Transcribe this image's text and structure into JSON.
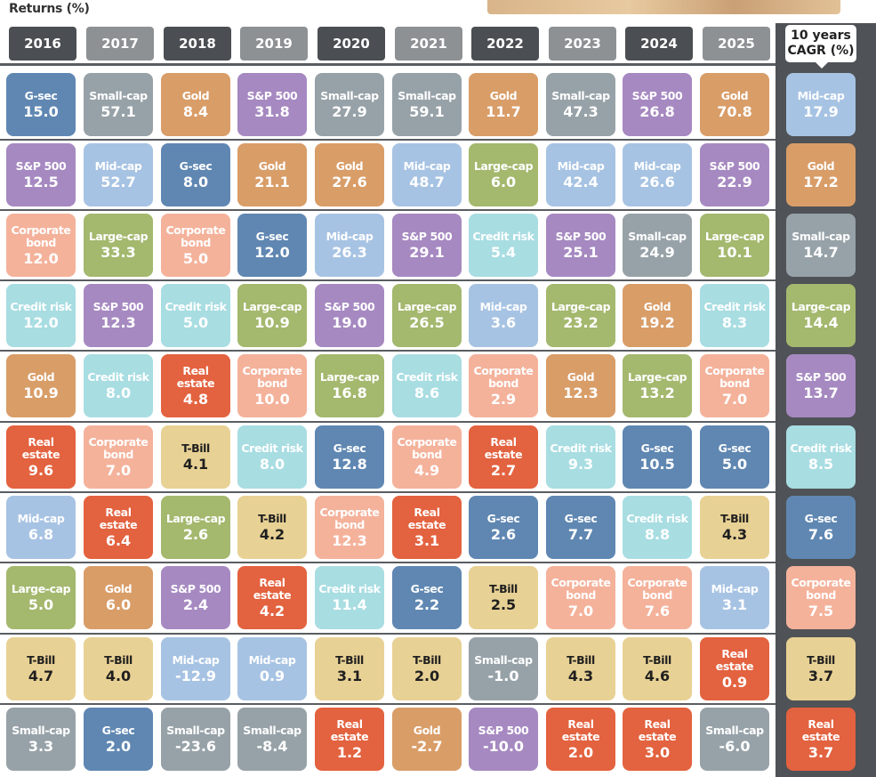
{
  "title": "Returns (%)",
  "years": [
    "2016",
    "2017",
    "2018",
    "2019",
    "2020",
    "2021",
    "2022",
    "2023",
    "2024",
    "2025"
  ],
  "cagr_header": {
    "line1": "10 years",
    "line2": "CAGR (%)"
  },
  "colors": {
    "G-sec": "#5f87b2",
    "Small-cap": "#97a2a8",
    "Gold": "#d99d68",
    "S&P 500": "#a689c1",
    "Mid-cap": "#a7c3e3",
    "Large-cap": "#a4b86e",
    "Corporate bond": "#f4b29b",
    "Credit risk": "#a8dde2",
    "Real estate": "#e3623f",
    "T-Bill": "#e8d194"
  },
  "chart_data": {
    "type": "table",
    "title": "Returns (%)",
    "columns": [
      {
        "year": "2016",
        "rows": [
          [
            "G-sec",
            "15.0"
          ],
          [
            "S&P 500",
            "12.5"
          ],
          [
            "Corporate bond",
            "12.0"
          ],
          [
            "Credit risk",
            "12.0"
          ],
          [
            "Gold",
            "10.9"
          ],
          [
            "Real estate",
            "9.6"
          ],
          [
            "Mid-cap",
            "6.8"
          ],
          [
            "Large-cap",
            "5.0"
          ],
          [
            "T-Bill",
            "4.7"
          ],
          [
            "Small-cap",
            "3.3"
          ]
        ]
      },
      {
        "year": "2017",
        "rows": [
          [
            "Small-cap",
            "57.1"
          ],
          [
            "Mid-cap",
            "52.7"
          ],
          [
            "Large-cap",
            "33.3"
          ],
          [
            "S&P 500",
            "12.3"
          ],
          [
            "Credit risk",
            "8.0"
          ],
          [
            "Corporate bond",
            "7.0"
          ],
          [
            "Real estate",
            "6.4"
          ],
          [
            "Gold",
            "6.0"
          ],
          [
            "T-Bill",
            "4.0"
          ],
          [
            "G-sec",
            "2.0"
          ]
        ]
      },
      {
        "year": "2018",
        "rows": [
          [
            "Gold",
            "8.4"
          ],
          [
            "G-sec",
            "8.0"
          ],
          [
            "Corporate bond",
            "5.0"
          ],
          [
            "Credit risk",
            "5.0"
          ],
          [
            "Real estate",
            "4.8"
          ],
          [
            "T-Bill",
            "4.1"
          ],
          [
            "Large-cap",
            "2.6"
          ],
          [
            "S&P 500",
            "2.4"
          ],
          [
            "Mid-cap",
            "-12.9"
          ],
          [
            "Small-cap",
            "-23.6"
          ]
        ]
      },
      {
        "year": "2019",
        "rows": [
          [
            "S&P 500",
            "31.8"
          ],
          [
            "Gold",
            "21.1"
          ],
          [
            "G-sec",
            "12.0"
          ],
          [
            "Large-cap",
            "10.9"
          ],
          [
            "Corporate bond",
            "10.0"
          ],
          [
            "Credit risk",
            "8.0"
          ],
          [
            "T-Bill",
            "4.2"
          ],
          [
            "Real estate",
            "4.2"
          ],
          [
            "Mid-cap",
            "0.9"
          ],
          [
            "Small-cap",
            "-8.4"
          ]
        ]
      },
      {
        "year": "2020",
        "rows": [
          [
            "Small-cap",
            "27.9"
          ],
          [
            "Gold",
            "27.6"
          ],
          [
            "Mid-cap",
            "26.3"
          ],
          [
            "S&P 500",
            "19.0"
          ],
          [
            "Large-cap",
            "16.8"
          ],
          [
            "G-sec",
            "12.8"
          ],
          [
            "Corporate bond",
            "12.3"
          ],
          [
            "Credit risk",
            "11.4"
          ],
          [
            "T-Bill",
            "3.1"
          ],
          [
            "Real estate",
            "1.2"
          ]
        ]
      },
      {
        "year": "2021",
        "rows": [
          [
            "Small-cap",
            "59.1"
          ],
          [
            "Mid-cap",
            "48.7"
          ],
          [
            "S&P 500",
            "29.1"
          ],
          [
            "Large-cap",
            "26.5"
          ],
          [
            "Credit risk",
            "8.6"
          ],
          [
            "Corporate bond",
            "4.9"
          ],
          [
            "Real estate",
            "3.1"
          ],
          [
            "G-sec",
            "2.2"
          ],
          [
            "T-Bill",
            "2.0"
          ],
          [
            "Gold",
            "-2.7"
          ]
        ]
      },
      {
        "year": "2022",
        "rows": [
          [
            "Gold",
            "11.7"
          ],
          [
            "Large-cap",
            "6.0"
          ],
          [
            "Credit risk",
            "5.4"
          ],
          [
            "Mid-cap",
            "3.6"
          ],
          [
            "Corporate bond",
            "2.9"
          ],
          [
            "Real estate",
            "2.7"
          ],
          [
            "G-sec",
            "2.6"
          ],
          [
            "T-Bill",
            "2.5"
          ],
          [
            "Small-cap",
            "-1.0"
          ],
          [
            "S&P 500",
            "-10.0"
          ]
        ]
      },
      {
        "year": "2023",
        "rows": [
          [
            "Small-cap",
            "47.3"
          ],
          [
            "Mid-cap",
            "42.4"
          ],
          [
            "S&P 500",
            "25.1"
          ],
          [
            "Large-cap",
            "23.2"
          ],
          [
            "Gold",
            "12.3"
          ],
          [
            "Credit risk",
            "9.3"
          ],
          [
            "G-sec",
            "7.7"
          ],
          [
            "Corporate bond",
            "7.0"
          ],
          [
            "T-Bill",
            "4.3"
          ],
          [
            "Real estate",
            "2.0"
          ]
        ]
      },
      {
        "year": "2024",
        "rows": [
          [
            "S&P 500",
            "26.8"
          ],
          [
            "Mid-cap",
            "26.6"
          ],
          [
            "Small-cap",
            "24.9"
          ],
          [
            "Gold",
            "19.2"
          ],
          [
            "Large-cap",
            "13.2"
          ],
          [
            "G-sec",
            "10.5"
          ],
          [
            "Credit risk",
            "8.8"
          ],
          [
            "Corporate bond",
            "7.6"
          ],
          [
            "T-Bill",
            "4.6"
          ],
          [
            "Real estate",
            "3.0"
          ]
        ]
      },
      {
        "year": "2025",
        "rows": [
          [
            "Gold",
            "70.8"
          ],
          [
            "S&P 500",
            "22.9"
          ],
          [
            "Large-cap",
            "10.1"
          ],
          [
            "Credit risk",
            "8.3"
          ],
          [
            "Corporate bond",
            "7.0"
          ],
          [
            "G-sec",
            "5.0"
          ],
          [
            "T-Bill",
            "4.3"
          ],
          [
            "Mid-cap",
            "3.1"
          ],
          [
            "Real estate",
            "0.9"
          ],
          [
            "Small-cap",
            "-6.0"
          ]
        ]
      }
    ],
    "cagr": [
      [
        "Mid-cap",
        "17.9"
      ],
      [
        "Gold",
        "17.2"
      ],
      [
        "Small-cap",
        "14.7"
      ],
      [
        "Large-cap",
        "14.4"
      ],
      [
        "S&P 500",
        "13.7"
      ],
      [
        "Credit risk",
        "8.5"
      ],
      [
        "G-sec",
        "7.6"
      ],
      [
        "Corporate bond",
        "7.5"
      ],
      [
        "T-Bill",
        "3.7"
      ],
      [
        "Real estate",
        "3.7"
      ]
    ]
  }
}
